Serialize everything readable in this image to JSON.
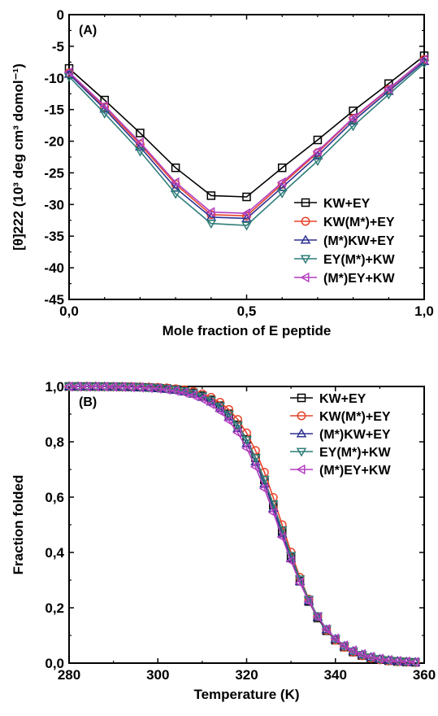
{
  "chart_data": [
    {
      "type": "line",
      "panel_label": "(A)",
      "xlabel": "Mole fraction of E peptide",
      "ylabel": "[θ]222 (10³ deg cm³ domol⁻¹)",
      "xlim": [
        0,
        1
      ],
      "ylim": [
        -45,
        0
      ],
      "xticks": [
        0,
        0.5,
        1
      ],
      "xtick_labels": [
        "0,0",
        "0,5",
        "1,0"
      ],
      "yticks": [
        0,
        -5,
        -10,
        -15,
        -20,
        -25,
        -30,
        -35,
        -40,
        -45
      ],
      "ytick_labels": [
        "0",
        "-5",
        "-10",
        "-15",
        "-20",
        "-25",
        "-30",
        "-35",
        "-40",
        "-45"
      ],
      "legend_position": "lower-right",
      "x": [
        0,
        0.1,
        0.2,
        0.3,
        0.4,
        0.5,
        0.6,
        0.7,
        0.8,
        0.9,
        1.0
      ],
      "series": [
        {
          "name": "KW+EY",
          "color": "#000000",
          "marker": "square",
          "values": [
            -8.5,
            -13.5,
            -18.7,
            -24.2,
            -28.6,
            -28.8,
            -24.2,
            -19.8,
            -15.2,
            -10.9,
            -6.5
          ]
        },
        {
          "name": "KW(M*)+EY",
          "color": "#e8442b",
          "marker": "circle",
          "values": [
            -9.2,
            -14.6,
            -20.5,
            -26.8,
            -31.6,
            -31.8,
            -26.8,
            -21.8,
            -16.4,
            -11.8,
            -7.1
          ]
        },
        {
          "name": "(M*)KW+EY",
          "color": "#2e3192",
          "marker": "triangle-up",
          "values": [
            -9.4,
            -14.9,
            -20.9,
            -27.4,
            -32.0,
            -32.2,
            -27.3,
            -22.3,
            -16.8,
            -12.1,
            -7.4
          ]
        },
        {
          "name": "EY(M*)+KW",
          "color": "#2e7d78",
          "marker": "triangle-down",
          "values": [
            -9.8,
            -15.6,
            -21.6,
            -28.3,
            -33.0,
            -33.3,
            -28.2,
            -23.1,
            -17.6,
            -12.6,
            -7.7
          ]
        },
        {
          "name": "(M*)EY+KW",
          "color": "#b33fbf",
          "marker": "triangle-left",
          "values": [
            -9.1,
            -14.4,
            -20.2,
            -26.5,
            -31.2,
            -31.4,
            -26.5,
            -21.6,
            -16.3,
            -11.7,
            -7.1
          ]
        }
      ]
    },
    {
      "type": "line",
      "panel_label": "(B)",
      "xlabel": "Temperature (K)",
      "ylabel": "Fraction folded",
      "xlim": [
        280,
        360
      ],
      "ylim": [
        0,
        1
      ],
      "xticks": [
        280,
        300,
        320,
        340,
        360
      ],
      "xtick_labels": [
        "280",
        "300",
        "320",
        "340",
        "360"
      ],
      "yticks": [
        0,
        0.2,
        0.4,
        0.6,
        0.8,
        1.0
      ],
      "ytick_labels": [
        "0,0",
        "0,2",
        "0,4",
        "0,6",
        "0,8",
        "1,0"
      ],
      "legend_position": "top-right",
      "series": [
        {
          "name": "KW+EY",
          "color": "#000000",
          "marker": "square",
          "tm": 327.5,
          "width": 5.2
        },
        {
          "name": "KW(M*)+EY",
          "color": "#e8442b",
          "marker": "circle",
          "tm": 328.0,
          "width": 5.0
        },
        {
          "name": "(M*)KW+EY",
          "color": "#2e3192",
          "marker": "triangle-up",
          "tm": 327.3,
          "width": 5.4
        },
        {
          "name": "EY(M*)+KW",
          "color": "#2e7d78",
          "marker": "triangle-down",
          "tm": 327.6,
          "width": 5.3
        },
        {
          "name": "(M*)EY+KW",
          "color": "#b33fbf",
          "marker": "triangle-left",
          "tm": 327.0,
          "width": 5.6
        }
      ]
    }
  ]
}
